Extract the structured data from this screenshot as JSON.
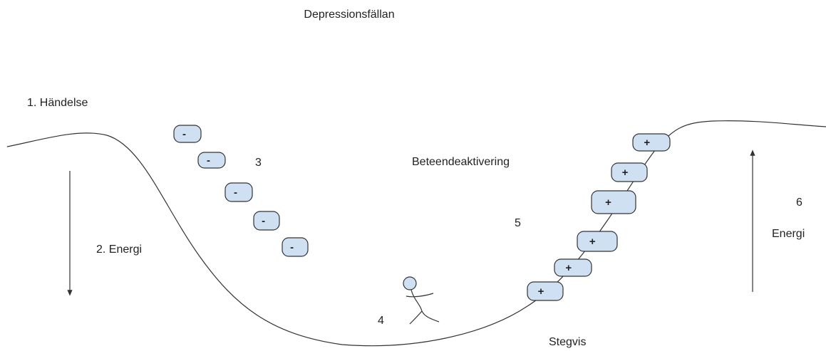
{
  "title": "Depressionsfällan",
  "labels": [
    "1. Händelse",
    "2. Energi",
    "3",
    "Beteendeaktivering",
    "4",
    "5",
    "Stegvis",
    "6",
    "Energi"
  ],
  "minus_boxes": [
    "-",
    "-",
    "-",
    "-",
    "-"
  ],
  "plus_boxes": [
    "+",
    "+",
    "+",
    "+",
    "+",
    "+"
  ]
}
